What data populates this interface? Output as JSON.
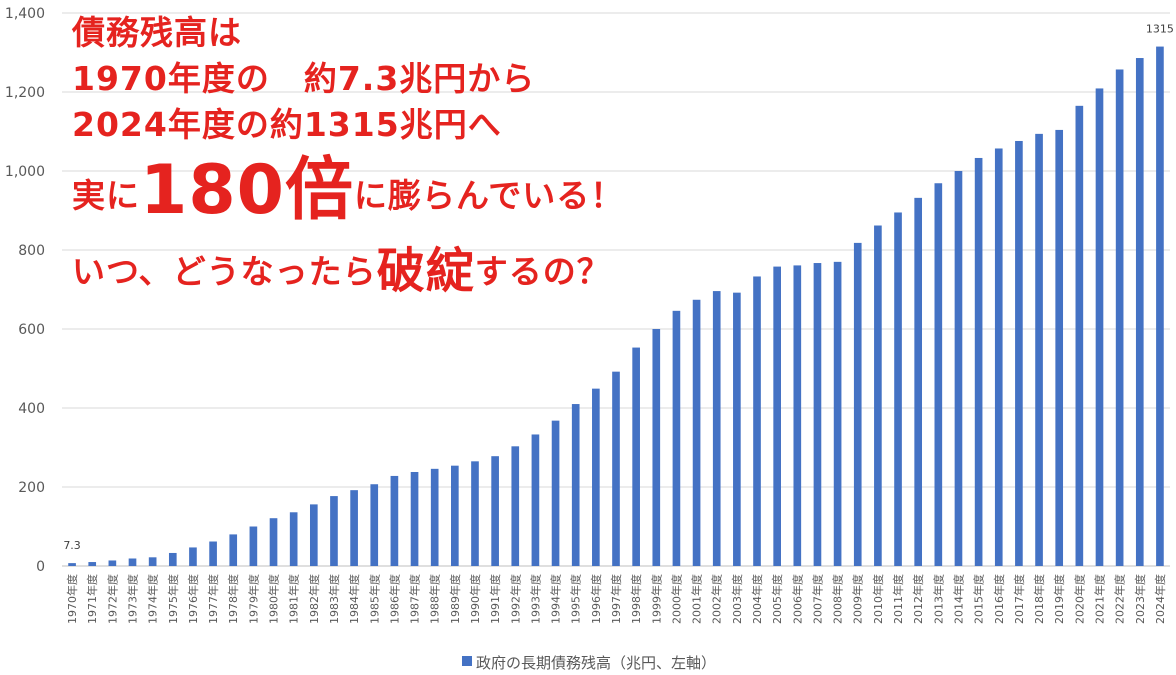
{
  "chart_data": {
    "type": "bar",
    "ylim": [
      0,
      1400
    ],
    "yticks": [
      "0",
      "200",
      "400",
      "600",
      "800",
      "1,000",
      "1,200",
      "1,400"
    ],
    "grid": true,
    "legend_position": "bottom",
    "bar_color": "#4472c4",
    "categories": [
      "1970年度",
      "1971年度",
      "1972年度",
      "1973年度",
      "1974年度",
      "1975年度",
      "1976年度",
      "1977年度",
      "1978年度",
      "1979年度",
      "1980年度",
      "1981年度",
      "1982年度",
      "1983年度",
      "1984年度",
      "1985年度",
      "1986年度",
      "1987年度",
      "1988年度",
      "1989年度",
      "1990年度",
      "1991年度",
      "1992年度",
      "1993年度",
      "1994年度",
      "1995年度",
      "1996年度",
      "1997年度",
      "1998年度",
      "1999年度",
      "2000年度",
      "2001年度",
      "2002年度",
      "2003年度",
      "2004年度",
      "2005年度",
      "2006年度",
      "2007年度",
      "2008年度",
      "2009年度",
      "2010年度",
      "2011年度",
      "2012年度",
      "2013年度",
      "2014年度",
      "2015年度",
      "2016年度",
      "2017年度",
      "2018年度",
      "2019年度",
      "2020年度",
      "2021年度",
      "2022年度",
      "2023年度",
      "2024年度"
    ],
    "series": [
      {
        "name": "政府の長期債務残高（兆円、左軸）",
        "values": [
          7.3,
          10,
          14,
          19,
          22,
          33,
          47,
          62,
          80,
          100,
          121,
          136,
          156,
          177,
          192,
          207,
          228,
          238,
          246,
          254,
          265,
          278,
          303,
          333,
          368,
          410,
          449,
          492,
          553,
          600,
          646,
          674,
          696,
          692,
          733,
          758,
          761,
          767,
          770,
          818,
          862,
          895,
          932,
          969,
          1000,
          1033,
          1057,
          1076,
          1094,
          1104,
          1165,
          1209,
          1257,
          1286,
          1315
        ]
      }
    ],
    "data_labels": [
      {
        "index": 0,
        "text": "7.3"
      },
      {
        "index": 54,
        "text": "1315"
      }
    ]
  },
  "overlay": {
    "line1": "債務残高は",
    "line2": "1970年度の　約7.3兆円から",
    "line3": "2024年度の約1315兆円へ",
    "line4_pre": "実に",
    "line4_big": "180倍",
    "line4_post": "に膨らんでいる！",
    "line5_pre": "いつ、どうなったら",
    "line5_big": "破綻",
    "line5_post": "するの？",
    "color": "#e5231f"
  }
}
